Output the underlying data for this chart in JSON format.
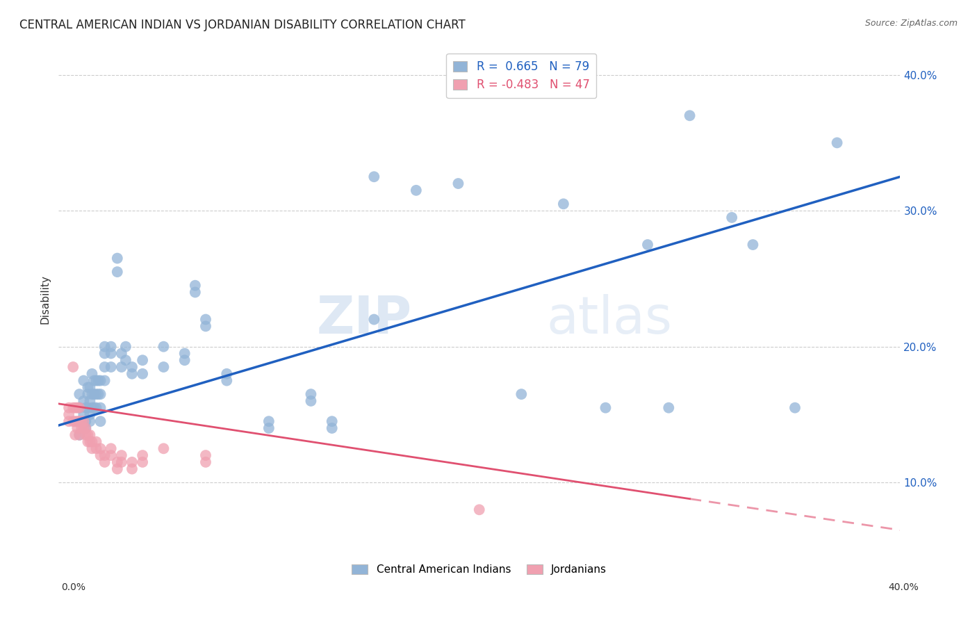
{
  "title": "CENTRAL AMERICAN INDIAN VS JORDANIAN DISABILITY CORRELATION CHART",
  "source": "Source: ZipAtlas.com",
  "ylabel": "Disability",
  "xmin": 0.0,
  "xmax": 0.4,
  "ymin": 0.05,
  "ymax": 0.42,
  "yticks": [
    0.1,
    0.2,
    0.3,
    0.4
  ],
  "ytick_labels": [
    "10.0%",
    "20.0%",
    "30.0%",
    "40.0%"
  ],
  "legend_blue_r": "R =  0.665",
  "legend_blue_n": "N = 79",
  "legend_pink_r": "R = -0.483",
  "legend_pink_n": "N = 47",
  "blue_color": "#92b4d7",
  "blue_line_color": "#2060c0",
  "pink_color": "#f0a0b0",
  "pink_line_color": "#e05070",
  "background_color": "#ffffff",
  "grid_color": "#cccccc",
  "watermark_zip": "ZIP",
  "watermark_atlas": "atlas",
  "blue_points": [
    [
      0.01,
      0.155
    ],
    [
      0.01,
      0.165
    ],
    [
      0.01,
      0.145
    ],
    [
      0.01,
      0.135
    ],
    [
      0.012,
      0.175
    ],
    [
      0.012,
      0.16
    ],
    [
      0.012,
      0.15
    ],
    [
      0.013,
      0.155
    ],
    [
      0.013,
      0.145
    ],
    [
      0.013,
      0.14
    ],
    [
      0.014,
      0.17
    ],
    [
      0.014,
      0.165
    ],
    [
      0.014,
      0.155
    ],
    [
      0.015,
      0.17
    ],
    [
      0.015,
      0.16
    ],
    [
      0.015,
      0.15
    ],
    [
      0.015,
      0.145
    ],
    [
      0.016,
      0.18
    ],
    [
      0.016,
      0.165
    ],
    [
      0.016,
      0.155
    ],
    [
      0.017,
      0.175
    ],
    [
      0.017,
      0.165
    ],
    [
      0.017,
      0.155
    ],
    [
      0.018,
      0.175
    ],
    [
      0.018,
      0.165
    ],
    [
      0.018,
      0.155
    ],
    [
      0.019,
      0.175
    ],
    [
      0.019,
      0.165
    ],
    [
      0.02,
      0.175
    ],
    [
      0.02,
      0.165
    ],
    [
      0.02,
      0.155
    ],
    [
      0.02,
      0.145
    ],
    [
      0.022,
      0.2
    ],
    [
      0.022,
      0.195
    ],
    [
      0.022,
      0.185
    ],
    [
      0.022,
      0.175
    ],
    [
      0.025,
      0.2
    ],
    [
      0.025,
      0.195
    ],
    [
      0.025,
      0.185
    ],
    [
      0.028,
      0.265
    ],
    [
      0.028,
      0.255
    ],
    [
      0.03,
      0.195
    ],
    [
      0.03,
      0.185
    ],
    [
      0.032,
      0.2
    ],
    [
      0.032,
      0.19
    ],
    [
      0.035,
      0.185
    ],
    [
      0.035,
      0.18
    ],
    [
      0.04,
      0.19
    ],
    [
      0.04,
      0.18
    ],
    [
      0.05,
      0.2
    ],
    [
      0.05,
      0.185
    ],
    [
      0.06,
      0.195
    ],
    [
      0.06,
      0.19
    ],
    [
      0.065,
      0.245
    ],
    [
      0.065,
      0.24
    ],
    [
      0.07,
      0.22
    ],
    [
      0.07,
      0.215
    ],
    [
      0.08,
      0.18
    ],
    [
      0.08,
      0.175
    ],
    [
      0.1,
      0.145
    ],
    [
      0.1,
      0.14
    ],
    [
      0.12,
      0.165
    ],
    [
      0.12,
      0.16
    ],
    [
      0.13,
      0.145
    ],
    [
      0.13,
      0.14
    ],
    [
      0.15,
      0.325
    ],
    [
      0.15,
      0.22
    ],
    [
      0.17,
      0.315
    ],
    [
      0.19,
      0.32
    ],
    [
      0.22,
      0.165
    ],
    [
      0.24,
      0.305
    ],
    [
      0.26,
      0.155
    ],
    [
      0.28,
      0.275
    ],
    [
      0.29,
      0.155
    ],
    [
      0.3,
      0.37
    ],
    [
      0.32,
      0.295
    ],
    [
      0.33,
      0.275
    ],
    [
      0.35,
      0.155
    ],
    [
      0.37,
      0.35
    ]
  ],
  "pink_points": [
    [
      0.005,
      0.155
    ],
    [
      0.005,
      0.15
    ],
    [
      0.005,
      0.145
    ],
    [
      0.007,
      0.185
    ],
    [
      0.007,
      0.155
    ],
    [
      0.007,
      0.145
    ],
    [
      0.008,
      0.155
    ],
    [
      0.008,
      0.145
    ],
    [
      0.008,
      0.135
    ],
    [
      0.009,
      0.155
    ],
    [
      0.009,
      0.145
    ],
    [
      0.009,
      0.14
    ],
    [
      0.01,
      0.155
    ],
    [
      0.01,
      0.145
    ],
    [
      0.01,
      0.135
    ],
    [
      0.011,
      0.145
    ],
    [
      0.011,
      0.14
    ],
    [
      0.012,
      0.145
    ],
    [
      0.012,
      0.14
    ],
    [
      0.013,
      0.14
    ],
    [
      0.013,
      0.135
    ],
    [
      0.014,
      0.135
    ],
    [
      0.014,
      0.13
    ],
    [
      0.015,
      0.135
    ],
    [
      0.015,
      0.13
    ],
    [
      0.016,
      0.13
    ],
    [
      0.016,
      0.125
    ],
    [
      0.018,
      0.13
    ],
    [
      0.018,
      0.125
    ],
    [
      0.02,
      0.125
    ],
    [
      0.02,
      0.12
    ],
    [
      0.022,
      0.12
    ],
    [
      0.022,
      0.115
    ],
    [
      0.025,
      0.125
    ],
    [
      0.025,
      0.12
    ],
    [
      0.028,
      0.115
    ],
    [
      0.028,
      0.11
    ],
    [
      0.03,
      0.12
    ],
    [
      0.03,
      0.115
    ],
    [
      0.035,
      0.115
    ],
    [
      0.035,
      0.11
    ],
    [
      0.04,
      0.12
    ],
    [
      0.04,
      0.115
    ],
    [
      0.05,
      0.125
    ],
    [
      0.2,
      0.08
    ],
    [
      0.07,
      0.12
    ],
    [
      0.07,
      0.115
    ]
  ],
  "blue_line": {
    "x0": 0.0,
    "y0": 0.142,
    "x1": 0.4,
    "y1": 0.325
  },
  "pink_line_solid": {
    "x0": 0.0,
    "y0": 0.158,
    "x1": 0.3,
    "y1": 0.088
  },
  "pink_line_dash": {
    "x0": 0.3,
    "y0": 0.088,
    "x1": 0.4,
    "y1": 0.065
  }
}
